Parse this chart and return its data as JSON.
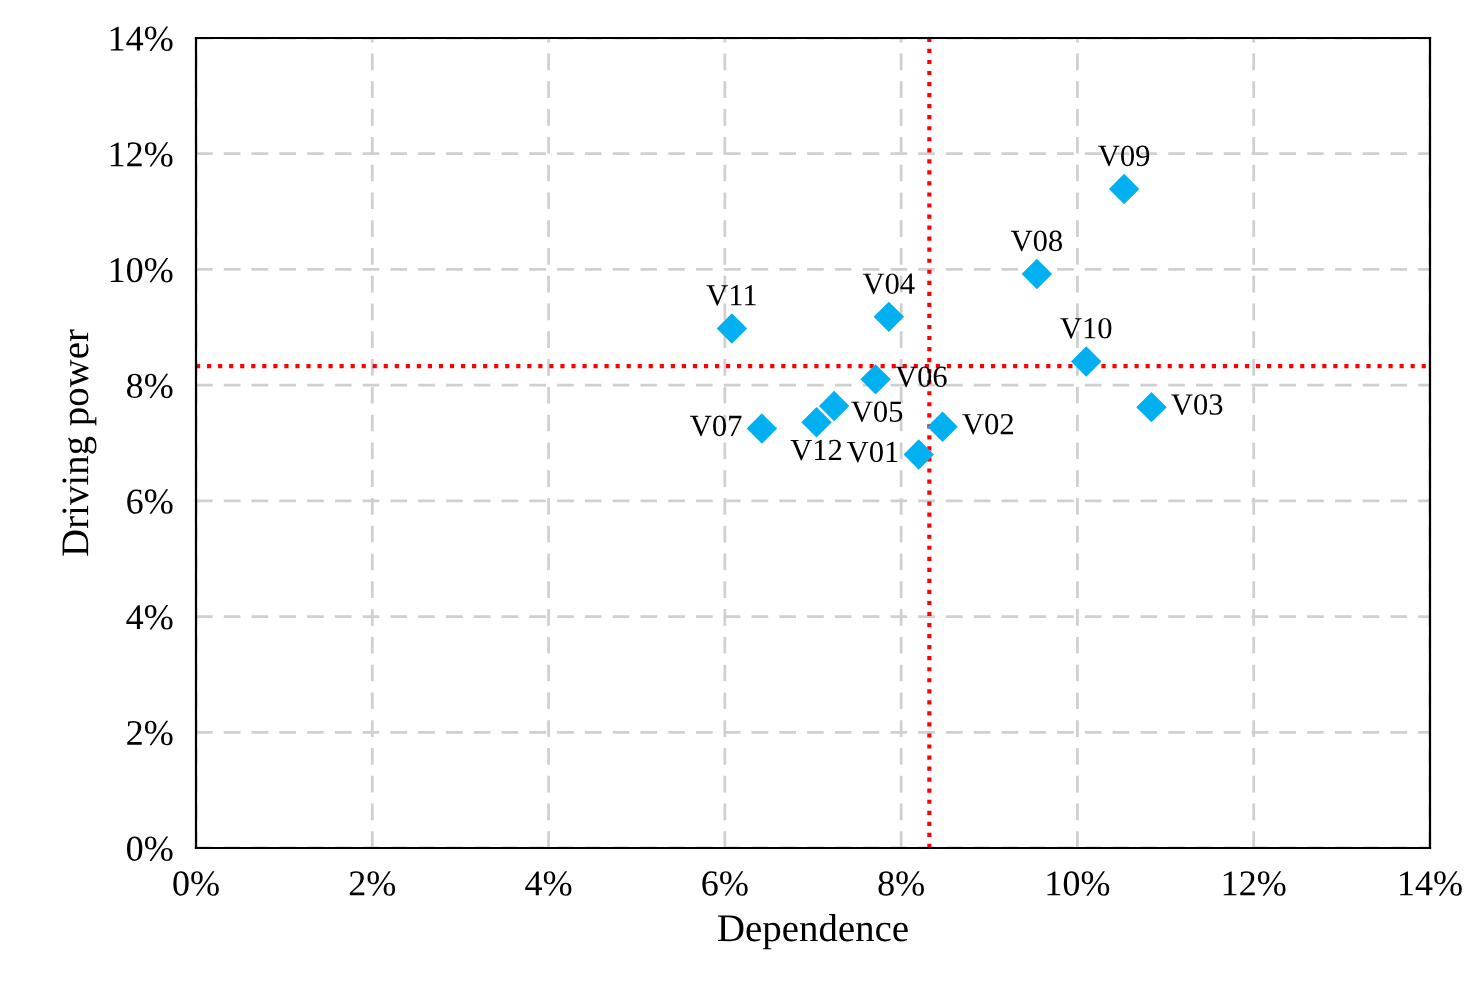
{
  "chart_data": {
    "type": "scatter",
    "xlabel": "Dependence",
    "ylabel": "Driving power",
    "xlim": [
      0,
      14
    ],
    "ylim": [
      0,
      14
    ],
    "xticks": [
      {
        "value": 0,
        "label": "0%"
      },
      {
        "value": 2,
        "label": "2%"
      },
      {
        "value": 4,
        "label": "4%"
      },
      {
        "value": 6,
        "label": "6%"
      },
      {
        "value": 8,
        "label": "8%"
      },
      {
        "value": 10,
        "label": "10%"
      },
      {
        "value": 12,
        "label": "12%"
      },
      {
        "value": 14,
        "label": "14%"
      }
    ],
    "yticks": [
      {
        "value": 0,
        "label": "0%"
      },
      {
        "value": 2,
        "label": "2%"
      },
      {
        "value": 4,
        "label": "4%"
      },
      {
        "value": 6,
        "label": "6%"
      },
      {
        "value": 8,
        "label": "8%"
      },
      {
        "value": 10,
        "label": "10%"
      },
      {
        "value": 12,
        "label": "12%"
      },
      {
        "value": 14,
        "label": "14%"
      }
    ],
    "grid": true,
    "marker": "diamond",
    "legend": false,
    "series": [
      {
        "name": "V01",
        "color": "#00b0f0",
        "x": [
          8.2
        ],
        "values": [
          6.8
        ]
      },
      {
        "name": "V02",
        "color": "#00b0f0",
        "x": [
          8.47
        ],
        "values": [
          7.28
        ]
      },
      {
        "name": "V03",
        "color": "#00b0f0",
        "x": [
          10.84
        ],
        "values": [
          7.62
        ]
      },
      {
        "name": "V04",
        "color": "#00b0f0",
        "x": [
          7.86
        ],
        "values": [
          9.18
        ]
      },
      {
        "name": "V05",
        "color": "#00b0f0",
        "x": [
          7.24
        ],
        "values": [
          7.64
        ]
      },
      {
        "name": "V06",
        "color": "#00b0f0",
        "x": [
          7.71
        ],
        "values": [
          8.1
        ]
      },
      {
        "name": "V07",
        "color": "#00b0f0",
        "x": [
          6.42
        ],
        "values": [
          7.25
        ]
      },
      {
        "name": "V08",
        "color": "#00b0f0",
        "x": [
          9.54
        ],
        "values": [
          9.92
        ]
      },
      {
        "name": "V09",
        "color": "#00b0f0",
        "x": [
          10.53
        ],
        "values": [
          11.39
        ]
      },
      {
        "name": "V10",
        "color": "#00b0f0",
        "x": [
          10.1
        ],
        "values": [
          8.41
        ]
      },
      {
        "name": "V11",
        "color": "#00b0f0",
        "x": [
          6.08
        ],
        "values": [
          8.98
        ]
      },
      {
        "name": "V12",
        "color": "#00b0f0",
        "x": [
          7.04
        ],
        "values": [
          7.36
        ]
      }
    ],
    "ref_lines": [
      {
        "axis": "x",
        "value": 8.32,
        "color": "#ff0000",
        "line_style": "dotted"
      },
      {
        "axis": "y",
        "value": 8.33,
        "color": "#ff0000",
        "line_style": "dotted"
      }
    ]
  }
}
